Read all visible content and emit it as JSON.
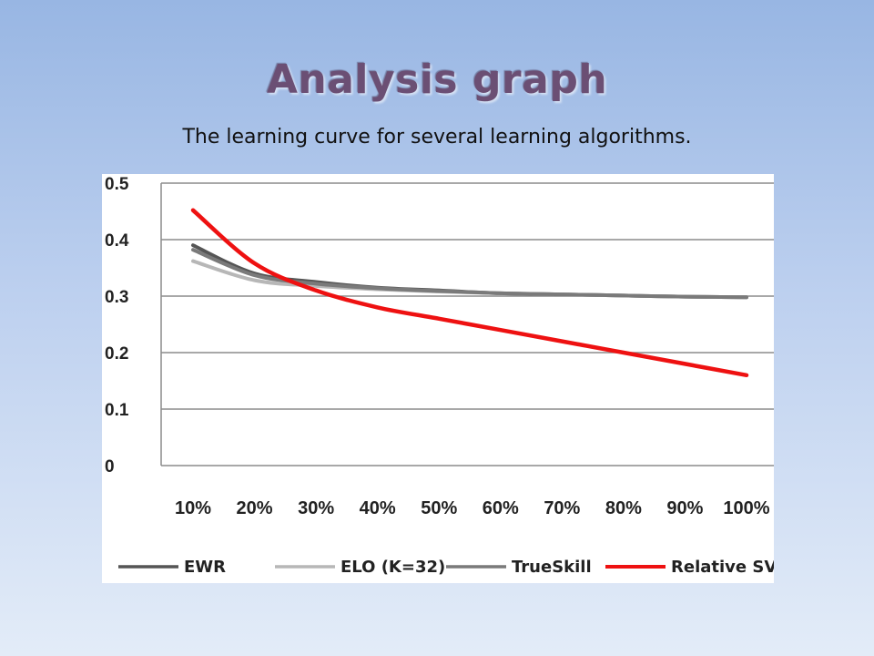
{
  "slide": {
    "title": "Analysis graph",
    "subtitle": "The learning curve for several learning algorithms."
  },
  "colors": {
    "EWR": "#555555",
    "ELO (K=32)": "#b7b7b7",
    "TrueSkill": "#7a7a7a",
    "Relative SVD": "#ee1111",
    "grid": "#8c8c8c"
  },
  "chart_data": {
    "type": "line",
    "title": "",
    "xlabel": "",
    "ylabel": "",
    "x": [
      "10%",
      "20%",
      "30%",
      "40%",
      "50%",
      "60%",
      "70%",
      "80%",
      "90%",
      "100%"
    ],
    "yticks": [
      "0",
      "0.1",
      "0.2",
      "0.3",
      "0.4",
      "0.5"
    ],
    "ylim": [
      0,
      0.5
    ],
    "grid": "horizontal",
    "legend": "bottom",
    "series": [
      {
        "name": "EWR",
        "values": [
          0.39,
          0.34,
          0.325,
          0.315,
          0.31,
          0.305,
          0.303,
          0.301,
          0.299,
          0.298
        ]
      },
      {
        "name": "ELO (K=32)",
        "values": [
          0.362,
          0.328,
          0.318,
          0.312,
          0.308,
          0.305,
          0.303,
          0.301,
          0.299,
          0.298
        ]
      },
      {
        "name": "TrueSkill",
        "values": [
          0.382,
          0.337,
          0.322,
          0.314,
          0.309,
          0.305,
          0.303,
          0.301,
          0.299,
          0.298
        ]
      },
      {
        "name": "Relative SVD",
        "values": [
          0.452,
          0.358,
          0.31,
          0.28,
          0.26,
          0.24,
          0.22,
          0.2,
          0.18,
          0.16
        ]
      }
    ]
  }
}
